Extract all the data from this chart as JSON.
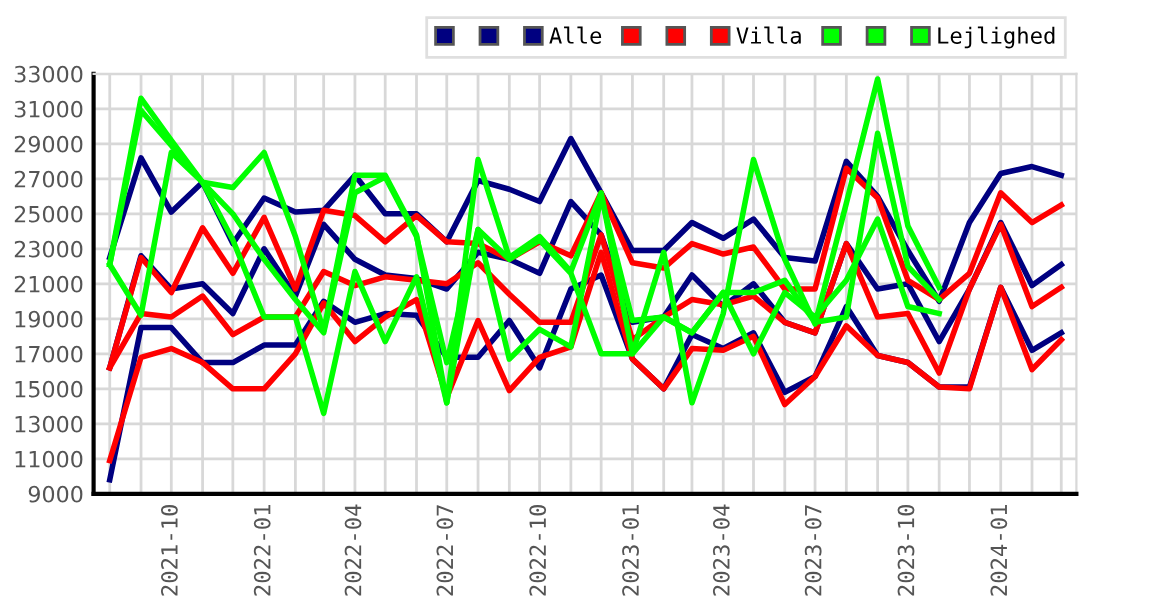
{
  "chart_data": {
    "type": "line",
    "x": [
      "2021-08",
      "2021-09",
      "2021-10",
      "2021-11",
      "2021-12",
      "2022-01",
      "2022-02",
      "2022-03",
      "2022-04",
      "2022-05",
      "2022-06",
      "2022-07",
      "2022-08",
      "2022-09",
      "2022-10",
      "2022-11",
      "2022-12",
      "2023-01",
      "2023-02",
      "2023-03",
      "2023-04",
      "2023-05",
      "2023-06",
      "2023-07",
      "2023-08",
      "2023-09",
      "2023-10",
      "2023-11",
      "2023-12",
      "2024-01",
      "2024-02",
      "2024-03"
    ],
    "series": [
      {
        "color": "#000080",
        "values": [
          22500,
          28200,
          25100,
          26800,
          23300,
          25900,
          25100,
          25200,
          27200,
          25000,
          25000,
          23400,
          26900,
          26400,
          25700,
          29300,
          26200,
          22900,
          22900,
          24500,
          23600,
          24700,
          22500,
          22300,
          28000,
          26000,
          22900,
          20000,
          24500,
          27300,
          27700,
          27200
        ]
      },
      {
        "color": "#000080",
        "values": [
          16200,
          22600,
          20700,
          21000,
          19300,
          23000,
          20300,
          24400,
          22400,
          21500,
          21300,
          20700,
          22800,
          22400,
          21600,
          25700,
          23800,
          18800,
          19100,
          21500,
          19700,
          21000,
          18800,
          18200,
          23300,
          20700,
          21000,
          17700,
          20700,
          24500,
          20900,
          22100
        ]
      },
      {
        "name": "Alle",
        "color": "#000080",
        "values": [
          9800,
          18500,
          18500,
          16500,
          16500,
          17500,
          17500,
          20000,
          18800,
          19300,
          19200,
          16800,
          16800,
          18900,
          16200,
          20700,
          21500,
          16700,
          15000,
          18100,
          17300,
          18200,
          14800,
          15700,
          19700,
          16900,
          16500,
          15100,
          15100,
          20800,
          17200,
          18200
        ]
      },
      {
        "color": "#ff0000",
        "values": [
          16200,
          22500,
          20500,
          24200,
          21600,
          24800,
          20700,
          25200,
          24900,
          23400,
          24900,
          23400,
          23300,
          22400,
          23400,
          22600,
          26200,
          22200,
          21900,
          23300,
          22700,
          23100,
          20700,
          20700,
          27600,
          25900,
          21200,
          20100,
          21600,
          26200,
          24500,
          25500
        ]
      },
      {
        "color": "#ff0000",
        "values": [
          16200,
          19300,
          19100,
          20300,
          18100,
          19100,
          19100,
          21700,
          20900,
          21400,
          21200,
          21000,
          22200,
          20400,
          18800,
          18800,
          23800,
          17800,
          19100,
          20100,
          19800,
          20300,
          18800,
          18200,
          23300,
          19100,
          19300,
          15900,
          20700,
          24400,
          19700,
          20800
        ]
      },
      {
        "name": "Villa",
        "color": "#ff0000",
        "values": [
          10900,
          16800,
          17300,
          16500,
          15000,
          15000,
          17000,
          19900,
          17700,
          19100,
          20100,
          14500,
          18900,
          14900,
          16800,
          17400,
          22800,
          16700,
          15000,
          17300,
          17200,
          18000,
          14100,
          15700,
          18600,
          16900,
          16500,
          15100,
          15000,
          20800,
          16100,
          17800
        ]
      },
      {
        "color": "#00ff00",
        "values": [
          22100,
          31600,
          29200,
          26800,
          26500,
          28500,
          23700,
          18300,
          27200,
          27200,
          23800,
          14200,
          28100,
          22500,
          23700,
          21700,
          26200,
          17000,
          22800,
          14200,
          19300,
          28100,
          22400,
          18700,
          25600,
          32700,
          24300,
          20800,
          null,
          null,
          null,
          null
        ]
      },
      {
        "color": "#00ff00",
        "values": [
          22100,
          30900,
          28900,
          26800,
          25000,
          22400,
          20100,
          18200,
          26200,
          27100,
          23700,
          16500,
          24100,
          22400,
          23500,
          21600,
          17000,
          17000,
          19100,
          18200,
          20500,
          17000,
          20500,
          19100,
          21200,
          24700,
          19700,
          19300,
          null,
          null,
          null,
          null
        ]
      },
      {
        "name": "Lejlighed",
        "color": "#00ff00",
        "values": [
          22100,
          19200,
          28500,
          26800,
          23500,
          19100,
          19100,
          13600,
          21700,
          17700,
          21400,
          14200,
          24100,
          16700,
          18400,
          17400,
          26000,
          18900,
          19100,
          18200,
          20500,
          20500,
          21200,
          18800,
          19100,
          29600,
          22000,
          20100,
          null,
          null,
          null,
          null
        ]
      }
    ],
    "xlim": [
      "2021-07-16",
      "2024-03-16"
    ],
    "xticks": [
      {
        "value": "2021-08",
        "label": null
      },
      {
        "value": "2021-09",
        "label": null
      },
      {
        "value": "2021-10",
        "label": "2021-10"
      },
      {
        "value": "2021-11",
        "label": null
      },
      {
        "value": "2021-12",
        "label": null
      },
      {
        "value": "2022-01",
        "label": "2022-01"
      },
      {
        "value": "2022-02",
        "label": null
      },
      {
        "value": "2022-03",
        "label": null
      },
      {
        "value": "2022-04",
        "label": "2022-04"
      },
      {
        "value": "2022-05",
        "label": null
      },
      {
        "value": "2022-06",
        "label": null
      },
      {
        "value": "2022-07",
        "label": "2022-07"
      },
      {
        "value": "2022-08",
        "label": null
      },
      {
        "value": "2022-09",
        "label": null
      },
      {
        "value": "2022-10",
        "label": "2022-10"
      },
      {
        "value": "2022-11",
        "label": null
      },
      {
        "value": "2022-12",
        "label": null
      },
      {
        "value": "2023-01",
        "label": "2023-01"
      },
      {
        "value": "2023-02",
        "label": null
      },
      {
        "value": "2023-03",
        "label": null
      },
      {
        "value": "2023-04",
        "label": "2023-04"
      },
      {
        "value": "2023-05",
        "label": null
      },
      {
        "value": "2023-06",
        "label": null
      },
      {
        "value": "2023-07",
        "label": "2023-07"
      },
      {
        "value": "2023-08",
        "label": null
      },
      {
        "value": "2023-09",
        "label": null
      },
      {
        "value": "2023-10",
        "label": "2023-10"
      },
      {
        "value": "2023-11",
        "label": null
      },
      {
        "value": "2023-12",
        "label": null
      },
      {
        "value": "2024-01",
        "label": "2024-01"
      },
      {
        "value": "2024-02",
        "label": null
      },
      {
        "value": "2024-03",
        "label": null
      }
    ],
    "ylim": [
      9000,
      33000
    ],
    "yticks": [
      9000,
      11000,
      13000,
      15000,
      17000,
      19000,
      21000,
      23000,
      25000,
      27000,
      29000,
      31000,
      33000
    ],
    "grid": true,
    "legend": "top right",
    "marker": "none",
    "line_style": "solid"
  }
}
